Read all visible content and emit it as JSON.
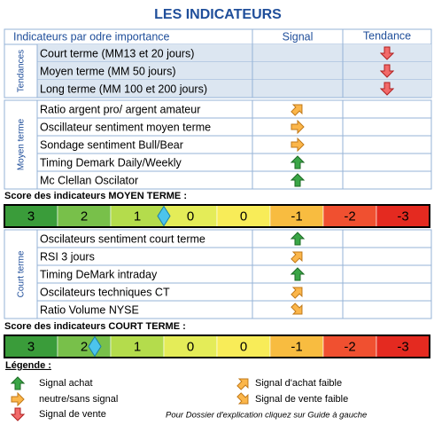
{
  "title": "LES INDICATEURS",
  "header": {
    "indicators": "Indicateurs par odre importance",
    "signal": "Signal",
    "trend": "Tendance"
  },
  "groups": [
    {
      "label": "Tendances",
      "rows": [
        "Court terme (MM13 et 20 jours)",
        "Moyen terme (MM 50 jours)",
        "Long terme (MM 100 et 200 jours)"
      ]
    },
    {
      "label": "Moyen terme",
      "rows": [
        "Ratio argent pro/ argent amateur",
        "Oscillateur sentiment moyen terme",
        "Sondage sentiment Bull/Bear",
        "Timing Demark Daily/Weekly",
        "Mc Clellan Oscilator"
      ]
    },
    {
      "label": "Court terme",
      "rows": [
        "Oscilateurs sentiment court terme",
        "RSI 3 jours",
        "Timing DeMark intraday",
        "Oscilateurs techniques CT",
        "Ratio Volume NYSE"
      ]
    }
  ],
  "scores": [
    {
      "title": "Score des indicateurs MOYEN TERME :",
      "levels": [
        3,
        2,
        1,
        0,
        0,
        -1,
        -2,
        -3
      ],
      "marker": 0.5
    },
    {
      "title": "Score des indicateurs COURT TERME :",
      "levels": [
        3,
        2,
        1,
        0,
        0,
        -1,
        -2,
        -3
      ],
      "marker": 1.8
    }
  ],
  "legend": {
    "title": "Légende :",
    "items": [
      "Signal achat",
      "neutre/sans signal",
      "Signal de vente",
      "Signal d'achat faible",
      "Signal de vente faible"
    ],
    "note": "Pour Dossier d'explication cliquez sur Guide à gauche"
  }
}
